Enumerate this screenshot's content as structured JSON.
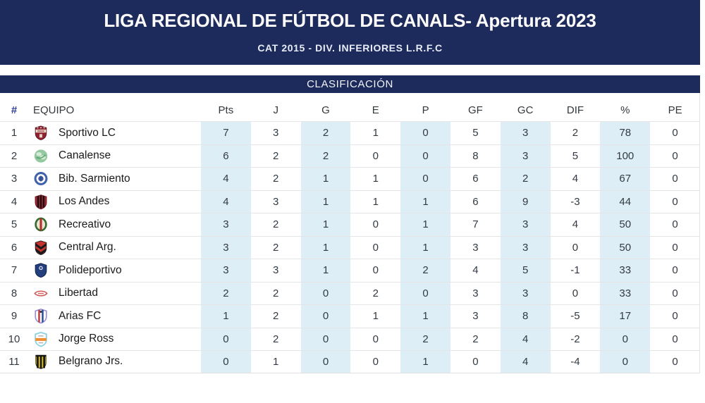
{
  "header": {
    "title": "LIGA REGIONAL DE FÚTBOL DE CANALS- Apertura 2023",
    "subtitle": "CAT 2015 - DIV. INFERIORES L.R.F.C",
    "section_label": "CLASIFICACIÓN"
  },
  "colors": {
    "navy_band": "#1d2b5c",
    "column_highlight": "#ddeef7",
    "row_separator": "#e5e5e8",
    "header_hash": "#2d3e93",
    "body_text": "#333a42"
  },
  "table": {
    "columns": [
      "#",
      "EQUIPO",
      "Pts",
      "J",
      "G",
      "E",
      "P",
      "GF",
      "GC",
      "DIF",
      "%",
      "PE"
    ],
    "highlight_columns": [
      "Pts",
      "G",
      "P",
      "GC",
      "%"
    ],
    "stat_keys": [
      "pts",
      "j",
      "g",
      "e",
      "p",
      "gf",
      "gc",
      "dif",
      "pct",
      "pe"
    ],
    "rows": [
      {
        "pos": "1",
        "team": "Sportivo LC",
        "logo": {
          "id": "sportivo-lc",
          "colors": [
            "#8e2433",
            "#5e1420",
            "#eee6d2"
          ]
        },
        "pts": "7",
        "j": "3",
        "g": "2",
        "e": "1",
        "p": "0",
        "gf": "5",
        "gc": "3",
        "dif": "2",
        "pct": "78",
        "pe": "0"
      },
      {
        "pos": "2",
        "team": "Canalense",
        "logo": {
          "id": "canalense",
          "colors": [
            "#93c8a0",
            "#e2f2e0",
            "#4f9c66"
          ]
        },
        "pts": "6",
        "j": "2",
        "g": "2",
        "e": "0",
        "p": "0",
        "gf": "8",
        "gc": "3",
        "dif": "5",
        "pct": "100",
        "pe": "0"
      },
      {
        "pos": "3",
        "team": "Bib. Sarmiento",
        "logo": {
          "id": "bib-sarmiento",
          "colors": [
            "#3f62ab",
            "#ffffff",
            "#2a4690"
          ]
        },
        "pts": "4",
        "j": "2",
        "g": "1",
        "e": "1",
        "p": "0",
        "gf": "6",
        "gc": "2",
        "dif": "4",
        "pct": "67",
        "pe": "0"
      },
      {
        "pos": "4",
        "team": "Los Andes",
        "logo": {
          "id": "los-andes",
          "colors": [
            "#a32733",
            "#171212",
            "#7c1b26"
          ]
        },
        "pts": "4",
        "j": "3",
        "g": "1",
        "e": "1",
        "p": "1",
        "gf": "6",
        "gc": "9",
        "dif": "-3",
        "pct": "44",
        "pe": "0"
      },
      {
        "pos": "5",
        "team": "Recreativo",
        "logo": {
          "id": "recreativo",
          "colors": [
            "#356b2f",
            "#e8e5d2",
            "#b23128"
          ]
        },
        "pts": "3",
        "j": "2",
        "g": "1",
        "e": "0",
        "p": "1",
        "gf": "7",
        "gc": "3",
        "dif": "4",
        "pct": "50",
        "pe": "0"
      },
      {
        "pos": "6",
        "team": "Central Arg.",
        "logo": {
          "id": "central-arg",
          "colors": [
            "#c5332e",
            "#191919"
          ]
        },
        "pts": "3",
        "j": "2",
        "g": "1",
        "e": "0",
        "p": "1",
        "gf": "3",
        "gc": "3",
        "dif": "0",
        "pct": "50",
        "pe": "0"
      },
      {
        "pos": "7",
        "team": "Polideportivo",
        "logo": {
          "id": "polideportivo",
          "colors": [
            "#233f7d",
            "#15264d"
          ]
        },
        "pts": "3",
        "j": "3",
        "g": "1",
        "e": "0",
        "p": "2",
        "gf": "4",
        "gc": "5",
        "dif": "-1",
        "pct": "33",
        "pe": "0"
      },
      {
        "pos": "8",
        "team": "Libertad",
        "logo": {
          "id": "libertad",
          "colors": [
            "#cf4d4d"
          ]
        },
        "pts": "2",
        "j": "2",
        "g": "0",
        "e": "2",
        "p": "0",
        "gf": "3",
        "gc": "3",
        "dif": "0",
        "pct": "33",
        "pe": "0"
      },
      {
        "pos": "9",
        "team": "Arias FC",
        "logo": {
          "id": "arias-fc",
          "colors": [
            "#9a8fd4",
            "#c23a3a",
            "#2b4a9e"
          ]
        },
        "pts": "1",
        "j": "2",
        "g": "0",
        "e": "1",
        "p": "1",
        "gf": "3",
        "gc": "8",
        "dif": "-5",
        "pct": "17",
        "pe": "0"
      },
      {
        "pos": "10",
        "team": "Jorge Ross",
        "logo": {
          "id": "jorge-ross",
          "colors": [
            "#8ed2e2",
            "#ee8c2e",
            "#8a8a8a"
          ]
        },
        "pts": "0",
        "j": "2",
        "g": "0",
        "e": "0",
        "p": "2",
        "gf": "2",
        "gc": "4",
        "dif": "-2",
        "pct": "0",
        "pe": "0"
      },
      {
        "pos": "11",
        "team": "Belgrano Jrs.",
        "logo": {
          "id": "belgrano-jrs",
          "colors": [
            "#e3c41d",
            "#161616"
          ]
        },
        "pts": "0",
        "j": "1",
        "g": "0",
        "e": "0",
        "p": "1",
        "gf": "0",
        "gc": "4",
        "dif": "-4",
        "pct": "0",
        "pe": "0"
      }
    ]
  }
}
